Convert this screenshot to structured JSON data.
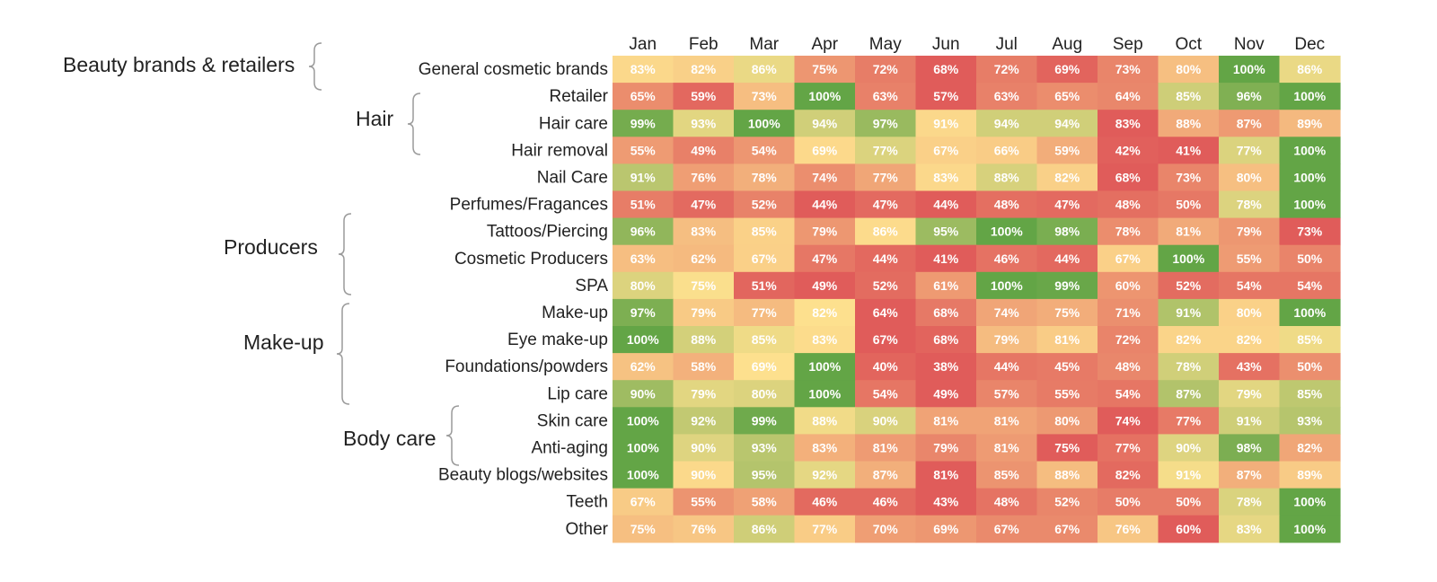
{
  "chart_data": {
    "type": "heatmap",
    "title": "",
    "x_categories": [
      "Jan",
      "Feb",
      "Mar",
      "Apr",
      "May",
      "Jun",
      "Jul",
      "Aug",
      "Sep",
      "Oct",
      "Nov",
      "Dec"
    ],
    "y_categories": [
      "General cosmetic brands",
      "Retailer",
      "Hair care",
      "Hair removal",
      "Nail Care",
      "Perfumes/Fragances",
      "Tattoos/Piercing",
      "Cosmetic Producers",
      "SPA",
      "Make-up",
      "Eye make-up",
      "Foundations/powders",
      "Lip care",
      "Skin care",
      "Anti-aging",
      "Beauty blogs/websites",
      "Teeth",
      "Other"
    ],
    "values": [
      [
        83,
        82,
        86,
        75,
        72,
        68,
        72,
        69,
        73,
        80,
        100,
        86
      ],
      [
        65,
        59,
        73,
        100,
        63,
        57,
        63,
        65,
        64,
        85,
        96,
        100
      ],
      [
        99,
        93,
        100,
        94,
        97,
        91,
        94,
        94,
        83,
        88,
        87,
        89
      ],
      [
        55,
        49,
        54,
        69,
        77,
        67,
        66,
        59,
        42,
        41,
        77,
        100
      ],
      [
        91,
        76,
        78,
        74,
        77,
        83,
        88,
        82,
        68,
        73,
        80,
        100
      ],
      [
        51,
        47,
        52,
        44,
        47,
        44,
        48,
        47,
        48,
        50,
        78,
        100
      ],
      [
        96,
        83,
        85,
        79,
        86,
        95,
        100,
        98,
        78,
        81,
        79,
        73
      ],
      [
        63,
        62,
        67,
        47,
        44,
        41,
        46,
        44,
        67,
        100,
        55,
        50
      ],
      [
        80,
        75,
        51,
        49,
        52,
        61,
        100,
        99,
        60,
        52,
        54,
        54
      ],
      [
        97,
        79,
        77,
        82,
        64,
        68,
        74,
        75,
        71,
        91,
        80,
        100
      ],
      [
        100,
        88,
        85,
        83,
        67,
        68,
        79,
        81,
        72,
        82,
        82,
        85
      ],
      [
        62,
        58,
        69,
        100,
        40,
        38,
        44,
        45,
        48,
        78,
        43,
        50
      ],
      [
        90,
        79,
        80,
        100,
        54,
        49,
        57,
        55,
        54,
        87,
        79,
        85
      ],
      [
        100,
        92,
        99,
        88,
        90,
        81,
        81,
        80,
        74,
        77,
        91,
        93
      ],
      [
        100,
        90,
        93,
        83,
        81,
        79,
        81,
        75,
        77,
        90,
        98,
        82
      ],
      [
        100,
        90,
        95,
        92,
        87,
        81,
        85,
        88,
        82,
        91,
        87,
        89
      ],
      [
        67,
        55,
        58,
        46,
        46,
        43,
        48,
        52,
        50,
        50,
        78,
        100
      ],
      [
        75,
        76,
        86,
        77,
        70,
        69,
        67,
        67,
        76,
        60,
        83,
        100
      ]
    ],
    "value_suffix": "%",
    "color_scale": "per-row, red (row minimum) to yellow to green (row maximum)",
    "colors": {
      "low": "#e05c5a",
      "mid": "#fde08e",
      "high": "#63a546"
    },
    "groups": [
      {
        "label": "Beauty brands & retailers",
        "rows": [
          0,
          1
        ]
      },
      {
        "label": "Hair",
        "rows": [
          1,
          3
        ]
      },
      {
        "label": "Producers",
        "rows": [
          6,
          8
        ]
      },
      {
        "label": "Make-up",
        "rows": [
          9,
          12
        ]
      },
      {
        "label": "Body care",
        "rows": [
          13,
          14
        ]
      }
    ],
    "legend": "none",
    "grid": false
  }
}
